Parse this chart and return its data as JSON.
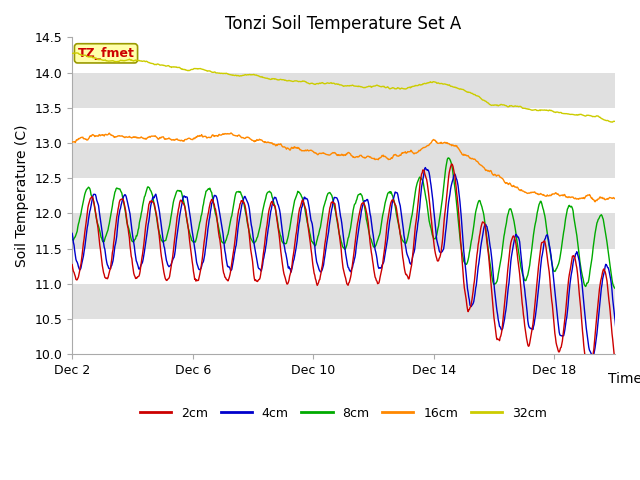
{
  "title": "Tonzi Soil Temperature Set A",
  "ylabel": "Soil Temperature (C)",
  "xlabel": "Time",
  "ylim": [
    10.0,
    14.5
  ],
  "yticks": [
    10.0,
    10.5,
    11.0,
    11.5,
    12.0,
    12.5,
    13.0,
    13.5,
    14.0,
    14.5
  ],
  "xtick_labels": [
    "Dec 2",
    "Dec 6",
    "Dec 10",
    "Dec 14",
    "Dec 18"
  ],
  "xtick_positions": [
    2,
    6,
    10,
    14,
    18
  ],
  "colors": {
    "2cm": "#cc0000",
    "4cm": "#0000cc",
    "8cm": "#00aa00",
    "16cm": "#ff8800",
    "32cm": "#cccc00"
  },
  "annotation_text": "TZ_fmet",
  "annotation_color": "#cc0000",
  "annotation_bg": "#ffffaa",
  "title_fontsize": 12,
  "label_fontsize": 10,
  "tick_fontsize": 9,
  "band_colors": [
    "#ffffff",
    "#e0e0e0"
  ],
  "fig_bg": "#ffffff",
  "spine_color": "#aaaaaa"
}
